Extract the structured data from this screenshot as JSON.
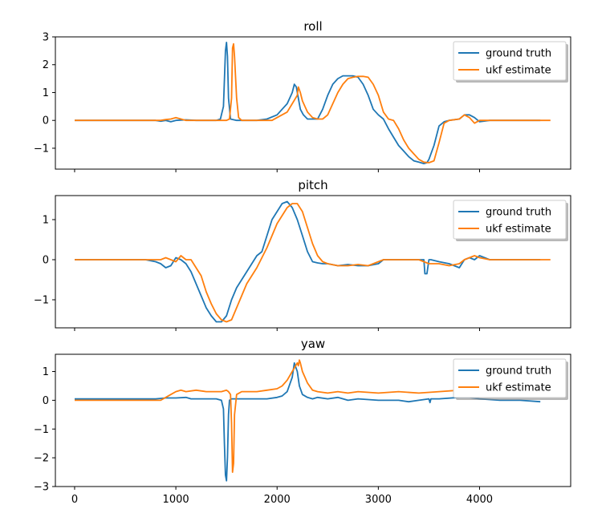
{
  "chart_data": [
    {
      "type": "line",
      "title": "roll",
      "xlabel": "",
      "ylabel": "",
      "xlim": [
        -190,
        4900
      ],
      "ylim": [
        -1.75,
        3.0
      ],
      "xticks": [
        0,
        1000,
        2000,
        3000,
        4000
      ],
      "xtick_labels": [
        "",
        "",
        "",
        "",
        ""
      ],
      "yticks": [
        -1,
        0,
        1,
        2,
        3
      ],
      "ytick_labels": [
        "−1",
        "0",
        "1",
        "2",
        "3"
      ],
      "legend": {
        "location": "top-right",
        "entries": [
          "ground truth",
          "ukf estimate"
        ]
      },
      "series": [
        {
          "name": "ground truth",
          "color": "#1f77b4",
          "x": [
            0,
            800,
            850,
            900,
            950,
            1000,
            1100,
            1200,
            1300,
            1400,
            1440,
            1470,
            1490,
            1500,
            1510,
            1520,
            1540,
            1600,
            1800,
            1900,
            2000,
            2050,
            2100,
            2150,
            2170,
            2190,
            2210,
            2230,
            2260,
            2300,
            2400,
            2450,
            2500,
            2550,
            2600,
            2650,
            2700,
            2750,
            2800,
            2850,
            2900,
            2950,
            3000,
            3050,
            3100,
            3150,
            3200,
            3250,
            3300,
            3350,
            3400,
            3450,
            3480,
            3500,
            3550,
            3600,
            3650,
            3700,
            3800,
            3850,
            3900,
            3950,
            4000,
            4100,
            4200,
            4300,
            4400,
            4500,
            4600
          ],
          "values": [
            0,
            0,
            -0.03,
            0,
            -0.05,
            0,
            0.02,
            0,
            0,
            0,
            0.05,
            0.5,
            2.5,
            2.8,
            2.3,
            0.8,
            0.05,
            0,
            0,
            0.05,
            0.2,
            0.4,
            0.6,
            1.0,
            1.3,
            1.2,
            0.8,
            0.4,
            0.2,
            0.05,
            0.05,
            0.4,
            0.9,
            1.3,
            1.5,
            1.6,
            1.6,
            1.6,
            1.55,
            1.3,
            0.9,
            0.4,
            0.2,
            0.05,
            -0.3,
            -0.6,
            -0.9,
            -1.1,
            -1.3,
            -1.45,
            -1.5,
            -1.55,
            -1.52,
            -1.4,
            -0.9,
            -0.2,
            -0.05,
            0,
            0.05,
            0.2,
            0.2,
            0.1,
            -0.05,
            0,
            0,
            0,
            0,
            0,
            0
          ]
        },
        {
          "name": "ukf estimate",
          "color": "#ff7f0e",
          "x": [
            0,
            850,
            900,
            950,
            1000,
            1050,
            1100,
            1200,
            1300,
            1400,
            1500,
            1530,
            1550,
            1560,
            1570,
            1580,
            1600,
            1620,
            1650,
            1800,
            1950,
            2000,
            2100,
            2150,
            2200,
            2210,
            2220,
            2230,
            2250,
            2300,
            2350,
            2400,
            2450,
            2500,
            2550,
            2600,
            2650,
            2700,
            2750,
            2800,
            2850,
            2900,
            2950,
            3000,
            3050,
            3100,
            3150,
            3200,
            3250,
            3300,
            3350,
            3400,
            3450,
            3500,
            3550,
            3600,
            3650,
            3700,
            3800,
            3850,
            3900,
            3950,
            4000,
            4100,
            4200,
            4300,
            4400,
            4500,
            4600,
            4700
          ],
          "values": [
            0,
            0,
            0.03,
            0.05,
            0.1,
            0.05,
            0,
            0,
            0,
            0,
            0,
            0.05,
            0.8,
            2.6,
            2.75,
            2.3,
            0.8,
            0.1,
            0,
            0,
            0,
            0.1,
            0.3,
            0.6,
            0.9,
            1.2,
            1.1,
            1.0,
            0.7,
            0.3,
            0.1,
            0.05,
            0.05,
            0.2,
            0.6,
            1.0,
            1.3,
            1.5,
            1.55,
            1.58,
            1.58,
            1.55,
            1.3,
            0.9,
            0.3,
            0.05,
            0,
            -0.3,
            -0.7,
            -1.0,
            -1.2,
            -1.4,
            -1.5,
            -1.52,
            -1.45,
            -0.8,
            -0.1,
            0,
            0.05,
            0.2,
            0.1,
            -0.1,
            0,
            0,
            0,
            0,
            0,
            0,
            0,
            0
          ]
        }
      ]
    },
    {
      "type": "line",
      "title": "pitch",
      "xlabel": "",
      "ylabel": "",
      "xlim": [
        -190,
        4900
      ],
      "ylim": [
        -1.7,
        1.6
      ],
      "xticks": [
        0,
        1000,
        2000,
        3000,
        4000
      ],
      "xtick_labels": [
        "",
        "",
        "",
        "",
        ""
      ],
      "yticks": [
        -1,
        0,
        1
      ],
      "ytick_labels": [
        "−1",
        "0",
        "1"
      ],
      "legend": {
        "location": "top-right",
        "entries": [
          "ground truth",
          "ukf estimate"
        ]
      },
      "series": [
        {
          "name": "ground truth",
          "color": "#1f77b4",
          "x": [
            0,
            700,
            800,
            850,
            900,
            950,
            1000,
            1050,
            1100,
            1150,
            1200,
            1250,
            1300,
            1350,
            1400,
            1450,
            1500,
            1550,
            1600,
            1650,
            1700,
            1750,
            1800,
            1850,
            1900,
            1950,
            2000,
            2050,
            2100,
            2150,
            2200,
            2250,
            2300,
            2350,
            2400,
            2450,
            2500,
            2600,
            2700,
            2800,
            2900,
            3000,
            3050,
            3100,
            3200,
            3300,
            3400,
            3450,
            3460,
            3480,
            3500,
            3510,
            3520,
            3600,
            3700,
            3800,
            3850,
            3900,
            3950,
            4000,
            4100,
            4200,
            4300,
            4400,
            4500,
            4600
          ],
          "values": [
            0,
            0,
            -0.05,
            -0.1,
            -0.2,
            -0.15,
            0.05,
            0,
            -0.1,
            -0.3,
            -0.6,
            -0.9,
            -1.2,
            -1.4,
            -1.55,
            -1.55,
            -1.4,
            -1.0,
            -0.7,
            -0.5,
            -0.3,
            -0.1,
            0.1,
            0.2,
            0.6,
            1.0,
            1.2,
            1.4,
            1.45,
            1.3,
            1.0,
            0.6,
            0.2,
            -0.05,
            -0.08,
            -0.1,
            -0.1,
            -0.15,
            -0.12,
            -0.15,
            -0.15,
            -0.1,
            0,
            0,
            0,
            0,
            0,
            0,
            -0.35,
            -0.35,
            0,
            0,
            0,
            -0.05,
            -0.1,
            -0.2,
            0,
            0.05,
            0,
            0.1,
            0,
            0,
            0,
            0,
            0,
            0
          ]
        },
        {
          "name": "ukf estimate",
          "color": "#ff7f0e",
          "x": [
            0,
            800,
            850,
            900,
            950,
            1000,
            1050,
            1100,
            1150,
            1200,
            1250,
            1300,
            1350,
            1400,
            1450,
            1500,
            1550,
            1600,
            1650,
            1700,
            1750,
            1800,
            1850,
            1900,
            1950,
            2000,
            2050,
            2100,
            2150,
            2200,
            2250,
            2300,
            2350,
            2400,
            2450,
            2500,
            2600,
            2700,
            2800,
            2900,
            3000,
            3050,
            3100,
            3200,
            3300,
            3400,
            3500,
            3600,
            3700,
            3800,
            3850,
            3900,
            3950,
            4000,
            4100,
            4200,
            4300,
            4400,
            4500,
            4600,
            4700
          ],
          "values": [
            0,
            0,
            0,
            0.05,
            0,
            -0.05,
            0.1,
            0,
            0,
            -0.2,
            -0.4,
            -0.8,
            -1.1,
            -1.35,
            -1.5,
            -1.55,
            -1.5,
            -1.2,
            -0.9,
            -0.6,
            -0.4,
            -0.2,
            0.05,
            0.3,
            0.6,
            0.9,
            1.1,
            1.3,
            1.4,
            1.4,
            1.2,
            0.8,
            0.4,
            0.1,
            -0.05,
            -0.1,
            -0.15,
            -0.15,
            -0.12,
            -0.15,
            -0.05,
            0,
            0,
            0,
            0,
            0,
            -0.1,
            -0.1,
            -0.15,
            -0.1,
            0,
            0.05,
            0.1,
            0.05,
            0,
            0,
            0,
            0,
            0,
            0,
            0
          ]
        }
      ]
    },
    {
      "type": "line",
      "title": "yaw",
      "xlabel": "",
      "ylabel": "",
      "xlim": [
        -190,
        4900
      ],
      "ylim": [
        -3.0,
        1.6
      ],
      "xticks": [
        0,
        1000,
        2000,
        3000,
        4000
      ],
      "xtick_labels": [
        "0",
        "1000",
        "2000",
        "3000",
        "4000"
      ],
      "yticks": [
        -3,
        -2,
        -1,
        0,
        1
      ],
      "ytick_labels": [
        "−3",
        "−2",
        "−1",
        "0",
        "1"
      ],
      "legend": {
        "location": "top-right",
        "entries": [
          "ground truth",
          "ukf estimate"
        ]
      },
      "series": [
        {
          "name": "ground truth",
          "color": "#1f77b4",
          "x": [
            0,
            800,
            900,
            1000,
            1100,
            1150,
            1200,
            1300,
            1400,
            1450,
            1470,
            1480,
            1490,
            1500,
            1510,
            1520,
            1530,
            1550,
            1600,
            1800,
            1900,
            2000,
            2050,
            2100,
            2150,
            2170,
            2200,
            2220,
            2250,
            2300,
            2350,
            2400,
            2500,
            2600,
            2700,
            2800,
            3000,
            3200,
            3300,
            3400,
            3500,
            3510,
            3520,
            3600,
            3800,
            3900,
            4000,
            4200,
            4400,
            4600
          ],
          "values": [
            0.05,
            0.05,
            0.08,
            0.08,
            0.1,
            0.05,
            0.05,
            0.05,
            0.05,
            0,
            -0.3,
            -1.5,
            -2.6,
            -2.8,
            -2.0,
            -0.5,
            0,
            0.05,
            0.05,
            0.05,
            0.05,
            0.1,
            0.15,
            0.3,
            0.8,
            1.3,
            1.0,
            0.5,
            0.2,
            0.1,
            0.05,
            0.1,
            0.05,
            0.1,
            0,
            0.05,
            0,
            0,
            -0.05,
            0,
            0.05,
            -0.08,
            0.05,
            0.05,
            0.1,
            0.1,
            0.05,
            0,
            0,
            -0.05
          ]
        },
        {
          "name": "ukf estimate",
          "color": "#ff7f0e",
          "x": [
            0,
            850,
            900,
            950,
            1000,
            1050,
            1100,
            1200,
            1300,
            1400,
            1450,
            1500,
            1520,
            1540,
            1550,
            1560,
            1570,
            1580,
            1600,
            1650,
            1700,
            1800,
            1900,
            2000,
            2050,
            2100,
            2150,
            2200,
            2210,
            2220,
            2230,
            2250,
            2300,
            2350,
            2400,
            2500,
            2600,
            2700,
            2800,
            3000,
            3200,
            3400,
            3600,
            3800,
            3900,
            4000,
            4200,
            4400,
            4600,
            4700
          ],
          "values": [
            0,
            0,
            0.1,
            0.2,
            0.3,
            0.35,
            0.3,
            0.35,
            0.3,
            0.3,
            0.3,
            0.35,
            0.3,
            0.2,
            -0.8,
            -2.5,
            -2.2,
            -0.5,
            0.2,
            0.3,
            0.3,
            0.3,
            0.35,
            0.4,
            0.5,
            0.7,
            1.0,
            1.3,
            1.2,
            1.4,
            1.3,
            1.0,
            0.6,
            0.35,
            0.3,
            0.25,
            0.3,
            0.25,
            0.3,
            0.25,
            0.3,
            0.25,
            0.3,
            0.35,
            0.4,
            0.5,
            0.45,
            0.4,
            0.4,
            0.4
          ]
        }
      ]
    }
  ]
}
